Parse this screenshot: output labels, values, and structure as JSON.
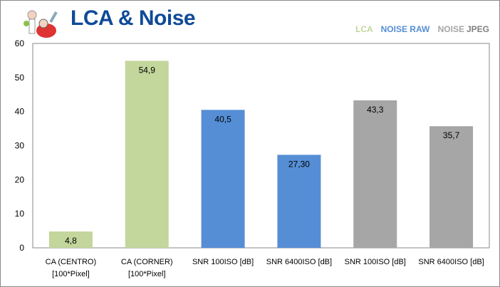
{
  "header": {
    "title": "LCA & Noise"
  },
  "legend": [
    {
      "label": "LCA",
      "color": "#c3d69b"
    },
    {
      "label": "NOISE RAW",
      "color": "#558ed5"
    },
    {
      "label": "NOISE",
      "color": "#a6a6a6"
    },
    {
      "label": "JPEG",
      "color": "#7f7f7f"
    }
  ],
  "chart_data": {
    "type": "bar",
    "title": "LCA & Noise",
    "categories": [
      [
        "CA (CENTRO)",
        "[100*Pixel]"
      ],
      [
        "CA (CORNER)",
        "[100*Pixel]"
      ],
      [
        "SNR 100ISO [dB]"
      ],
      [
        "SNR 6400ISO [dB]"
      ],
      [
        "SNR 100ISO [dB]"
      ],
      [
        "SNR 6400ISO [dB]"
      ]
    ],
    "values": [
      4.8,
      54.9,
      40.5,
      27.3,
      43.3,
      35.7
    ],
    "value_labels": [
      "4,8",
      "54,9",
      "40,5",
      "27,30",
      "43,3",
      "35,7"
    ],
    "colors": [
      "#c3d69b",
      "#c3d69b",
      "#558ed5",
      "#558ed5",
      "#a6a6a6",
      "#a6a6a6"
    ],
    "groups": [
      "LCA",
      "LCA",
      "NOISE RAW",
      "NOISE RAW",
      "NOISE JPEG",
      "NOISE JPEG"
    ],
    "ylim": [
      0,
      60
    ],
    "yticks": [
      0,
      10,
      20,
      30,
      40,
      50,
      60
    ],
    "grid": false,
    "legend_placement": "top-right"
  }
}
